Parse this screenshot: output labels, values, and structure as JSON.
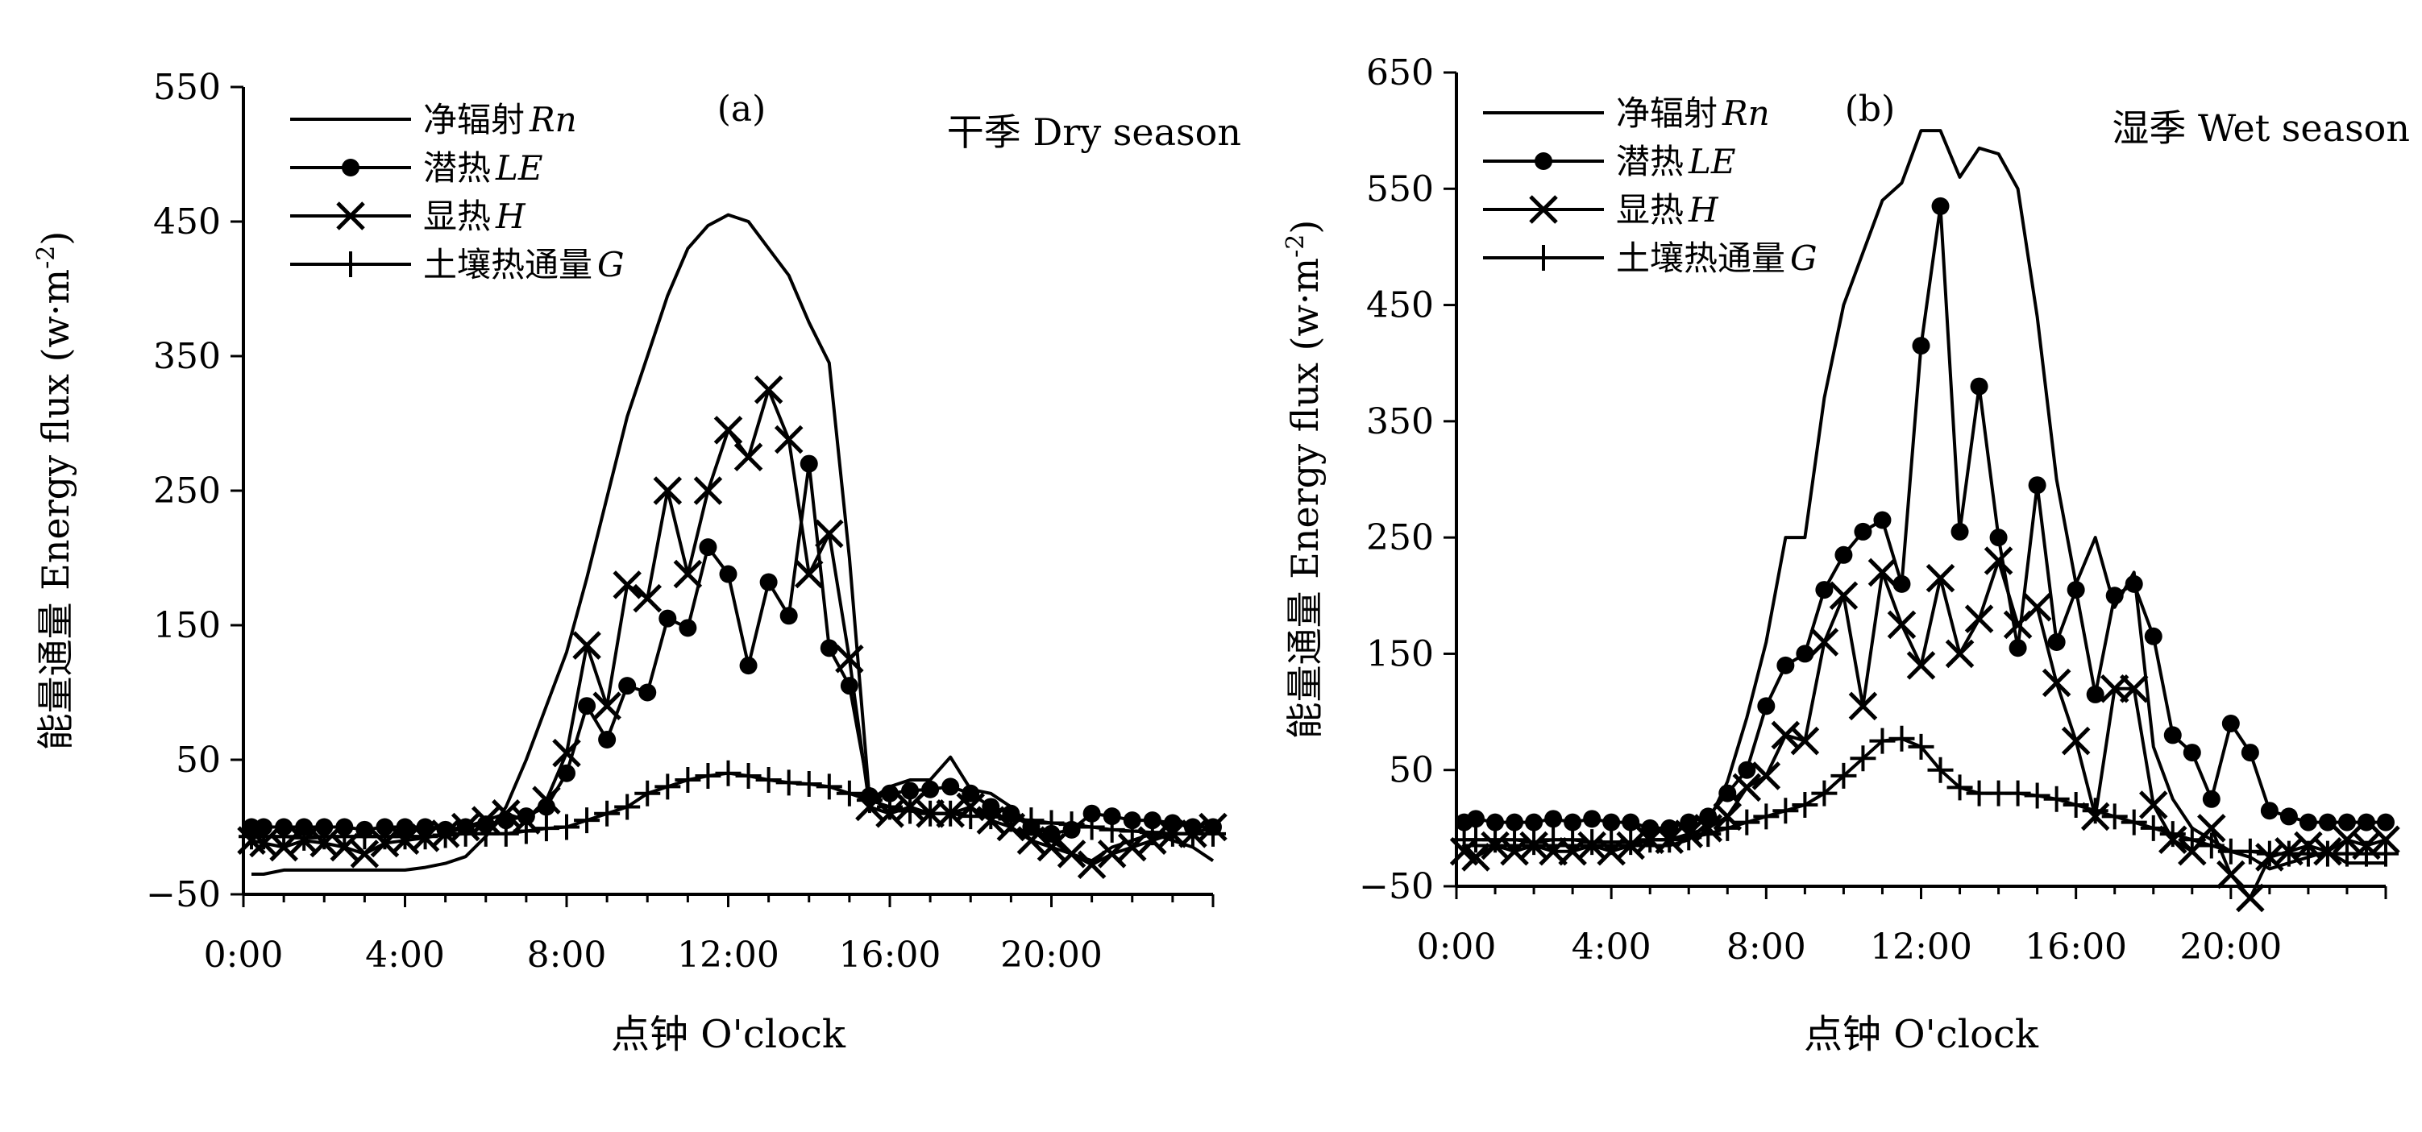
{
  "chart_data": [
    {
      "type": "line",
      "panel_label": "(a)",
      "title": "干季 Dry season",
      "xlabel": "点钟 O'clock",
      "ylabel": "能量通量 Energy flux (w·m",
      "ylabel_sup": "-2",
      "ylabel_close": ")",
      "xlim": [
        0,
        24
      ],
      "ylim": [
        -50,
        550
      ],
      "x_ticks": [
        0,
        4,
        8,
        12,
        16,
        20
      ],
      "x_tick_labels": [
        "0:00",
        "4:00",
        "8:00",
        "12:00",
        "16:00",
        "20:00"
      ],
      "y_ticks": [
        -50,
        50,
        150,
        250,
        350,
        450,
        550
      ],
      "y_tick_labels": [
        "-50",
        "50",
        "150",
        "250",
        "350",
        "450",
        "550"
      ],
      "legend_position": "top-left",
      "series": [
        {
          "name": "净辐射",
          "name_italic": "Rn",
          "marker": "none",
          "x": [
            0.2,
            0.5,
            1,
            1.5,
            2,
            2.5,
            3,
            3.5,
            4,
            4.5,
            5,
            5.5,
            6,
            6.5,
            7,
            7.5,
            8,
            8.5,
            9,
            9.5,
            10,
            10.5,
            11,
            11.5,
            12,
            12.5,
            13,
            13.5,
            14,
            14.5,
            15,
            15.5,
            16,
            16.5,
            17,
            17.5,
            18,
            18.5,
            19,
            19.5,
            20,
            20.5,
            21,
            21.5,
            22,
            22.5,
            23,
            23.5,
            24
          ],
          "y": [
            -35,
            -35,
            -32,
            -32,
            -32,
            -32,
            -32,
            -32,
            -32,
            -30,
            -27,
            -22,
            -7,
            15,
            50,
            90,
            130,
            185,
            245,
            305,
            350,
            395,
            430,
            447,
            455,
            450,
            430,
            410,
            375,
            345,
            200,
            20,
            30,
            35,
            35,
            52,
            28,
            25,
            15,
            0,
            -10,
            -20,
            -25,
            -15,
            -10,
            -5,
            -10,
            -15,
            -25
          ]
        },
        {
          "name": "潜热",
          "name_italic": "LE",
          "marker": "circle",
          "x": [
            0.2,
            0.5,
            1,
            1.5,
            2,
            2.5,
            3,
            3.5,
            4,
            4.5,
            5,
            5.5,
            6,
            6.5,
            7,
            7.5,
            8,
            8.5,
            9,
            9.5,
            10,
            10.5,
            11,
            11.5,
            12,
            12.5,
            13,
            13.5,
            14,
            14.5,
            15,
            15.5,
            16,
            16.5,
            17,
            17.5,
            18,
            18.5,
            19,
            19.5,
            20,
            20.5,
            21,
            21.5,
            22,
            22.5,
            23,
            23.5,
            24
          ],
          "y": [
            0,
            0,
            0,
            0,
            0,
            0,
            -2,
            0,
            0,
            0,
            -2,
            0,
            2,
            5,
            8,
            15,
            40,
            90,
            65,
            105,
            100,
            155,
            148,
            208,
            188,
            120,
            182,
            157,
            270,
            133,
            105,
            23,
            25,
            27,
            28,
            30,
            25,
            15,
            10,
            0,
            -5,
            -2,
            10,
            8,
            5,
            5,
            3,
            0,
            0
          ]
        },
        {
          "name": "显热",
          "name_italic": "H",
          "marker": "x",
          "x": [
            0.2,
            0.5,
            1,
            1.5,
            2,
            2.5,
            3,
            3.5,
            4,
            4.5,
            5,
            5.5,
            6,
            6.5,
            7,
            7.5,
            8,
            8.5,
            9,
            9.5,
            10,
            10.5,
            11,
            11.5,
            12,
            12.5,
            13,
            13.5,
            14,
            14.5,
            15,
            15.5,
            16,
            16.5,
            17,
            17.5,
            18,
            18.5,
            19,
            19.5,
            20,
            20.5,
            21,
            21.5,
            22,
            22.5,
            23,
            23.5,
            24
          ],
          "y": [
            -10,
            -12,
            -15,
            -10,
            -12,
            -15,
            -20,
            -12,
            -10,
            -8,
            -5,
            0,
            5,
            10,
            5,
            20,
            55,
            135,
            90,
            180,
            170,
            250,
            188,
            250,
            295,
            275,
            325,
            288,
            188,
            218,
            125,
            15,
            10,
            15,
            10,
            10,
            15,
            5,
            0,
            -10,
            -15,
            -20,
            -28,
            -20,
            -15,
            -10,
            -5,
            -5,
            0
          ]
        },
        {
          "name": "土壤热通量",
          "name_italic": "G",
          "marker": "plus",
          "x": [
            0.2,
            0.5,
            1,
            1.5,
            2,
            2.5,
            3,
            3.5,
            4,
            4.5,
            5,
            5.5,
            6,
            6.5,
            7,
            7.5,
            8,
            8.5,
            9,
            9.5,
            10,
            10.5,
            11,
            11.5,
            12,
            12.5,
            13,
            13.5,
            14,
            14.5,
            15,
            15.5,
            16,
            16.5,
            17,
            17.5,
            18,
            18.5,
            19,
            19.5,
            20,
            20.5,
            21,
            21.5,
            22,
            22.5,
            23,
            23.5,
            24
          ],
          "y": [
            -7,
            -7,
            -7,
            -8,
            -7,
            -7,
            -7,
            -7,
            -7,
            -7,
            -6,
            -5,
            -5,
            -5,
            -3,
            -1,
            0,
            5,
            10,
            15,
            25,
            30,
            35,
            38,
            40,
            38,
            35,
            33,
            32,
            30,
            25,
            20,
            15,
            12,
            10,
            10,
            8,
            8,
            6,
            5,
            3,
            2,
            0,
            -2,
            -3,
            -4,
            -5,
            -5,
            -5
          ]
        }
      ]
    },
    {
      "type": "line",
      "panel_label": "(b)",
      "title": "湿季 Wet season",
      "xlabel": "点钟 O'clock",
      "ylabel": "能量通量 Energy flux (w·m",
      "ylabel_sup": "-2",
      "ylabel_close": ")",
      "xlim": [
        0,
        24
      ],
      "ylim": [
        -50,
        650
      ],
      "x_ticks": [
        0,
        4,
        8,
        12,
        16,
        20
      ],
      "x_tick_labels": [
        "0:00",
        "4:00",
        "8:00",
        "12:00",
        "16:00",
        "20:00"
      ],
      "y_ticks": [
        -50,
        50,
        150,
        250,
        350,
        450,
        550,
        650
      ],
      "y_tick_labels": [
        "-50",
        "50",
        "150",
        "250",
        "350",
        "450",
        "550",
        "650"
      ],
      "legend_position": "top-left",
      "series": [
        {
          "name": "净辐射",
          "name_italic": "Rn",
          "marker": "none",
          "x": [
            0.2,
            0.5,
            1,
            1.5,
            2,
            2.5,
            3,
            3.5,
            4,
            4.5,
            5,
            5.5,
            6,
            6.5,
            7,
            7.5,
            8,
            8.5,
            9,
            9.5,
            10,
            10.5,
            11,
            11.5,
            12,
            12.5,
            13,
            13.5,
            14,
            14.5,
            15,
            15.5,
            16,
            16.5,
            17,
            17.5,
            18,
            18.5,
            19,
            19.5,
            20,
            20.5,
            21,
            21.5,
            22,
            22.5,
            23,
            23.5,
            24
          ],
          "y": [
            -15,
            -15,
            -15,
            -15,
            -15,
            -15,
            -15,
            -15,
            -15,
            -15,
            -15,
            -15,
            -10,
            5,
            40,
            95,
            160,
            250,
            250,
            370,
            450,
            495,
            540,
            555,
            600,
            600,
            560,
            585,
            580,
            550,
            440,
            300,
            210,
            250,
            190,
            220,
            70,
            25,
            0,
            -10,
            -20,
            -25,
            -35,
            -30,
            -25,
            -20,
            -30,
            -30,
            -30
          ]
        },
        {
          "name": "潜热",
          "name_italic": "LE",
          "marker": "circle",
          "x": [
            0.2,
            0.5,
            1,
            1.5,
            2,
            2.5,
            3,
            3.5,
            4,
            4.5,
            5,
            5.5,
            6,
            6.5,
            7,
            7.5,
            8,
            8.5,
            9,
            9.5,
            10,
            10.5,
            11,
            11.5,
            12,
            12.5,
            13,
            13.5,
            14,
            14.5,
            15,
            15.5,
            16,
            16.5,
            17,
            17.5,
            18,
            18.5,
            19,
            19.5,
            20,
            20.5,
            21,
            21.5,
            22,
            22.5,
            23,
            23.5,
            24
          ],
          "y": [
            5,
            8,
            5,
            5,
            5,
            8,
            5,
            8,
            5,
            5,
            0,
            0,
            5,
            10,
            30,
            50,
            105,
            140,
            150,
            205,
            235,
            255,
            265,
            210,
            415,
            535,
            255,
            380,
            250,
            155,
            295,
            160,
            205,
            115,
            200,
            210,
            165,
            80,
            65,
            25,
            90,
            65,
            15,
            10,
            5,
            5,
            5,
            5,
            5
          ]
        },
        {
          "name": "显热",
          "name_italic": "H",
          "marker": "x",
          "x": [
            0.2,
            0.5,
            1,
            1.5,
            2,
            2.5,
            3,
            3.5,
            4,
            4.5,
            5,
            5.5,
            6,
            6.5,
            7,
            7.5,
            8,
            8.5,
            9,
            9.5,
            10,
            10.5,
            11,
            11.5,
            12,
            12.5,
            13,
            13.5,
            14,
            14.5,
            15,
            15.5,
            16,
            16.5,
            17,
            17.5,
            18,
            18.5,
            19,
            19.5,
            20,
            20.5,
            21,
            21.5,
            22,
            22.5,
            23,
            23.5,
            24
          ],
          "y": [
            -20,
            -25,
            -15,
            -20,
            -15,
            -20,
            -20,
            -15,
            -20,
            -15,
            -10,
            -10,
            -5,
            0,
            10,
            35,
            45,
            80,
            75,
            160,
            200,
            105,
            220,
            175,
            140,
            215,
            150,
            180,
            230,
            175,
            190,
            125,
            75,
            10,
            120,
            120,
            20,
            -10,
            -20,
            0,
            -40,
            -60,
            -25,
            -20,
            -15,
            -20,
            -10,
            -15,
            -10
          ]
        },
        {
          "name": "土壤热通量",
          "name_italic": "G",
          "marker": "plus",
          "x": [
            0.2,
            0.5,
            1,
            1.5,
            2,
            2.5,
            3,
            3.5,
            4,
            4.5,
            5,
            5.5,
            6,
            6.5,
            7,
            7.5,
            8,
            8.5,
            9,
            9.5,
            10,
            10.5,
            11,
            11.5,
            12,
            12.5,
            13,
            13.5,
            14,
            14.5,
            15,
            15.5,
            16,
            16.5,
            17,
            17.5,
            18,
            18.5,
            19,
            19.5,
            20,
            20.5,
            21,
            21.5,
            22,
            22.5,
            23,
            23.5,
            24
          ],
          "y": [
            -10,
            -10,
            -10,
            -10,
            -12,
            -10,
            -10,
            -12,
            -12,
            -12,
            -10,
            -10,
            -8,
            -5,
            0,
            5,
            10,
            15,
            20,
            30,
            45,
            60,
            75,
            77,
            70,
            50,
            35,
            30,
            30,
            30,
            28,
            25,
            20,
            15,
            10,
            5,
            0,
            -5,
            -10,
            -15,
            -20,
            -20,
            -22,
            -22,
            -22,
            -22,
            -22,
            -22,
            -22
          ]
        }
      ]
    }
  ]
}
